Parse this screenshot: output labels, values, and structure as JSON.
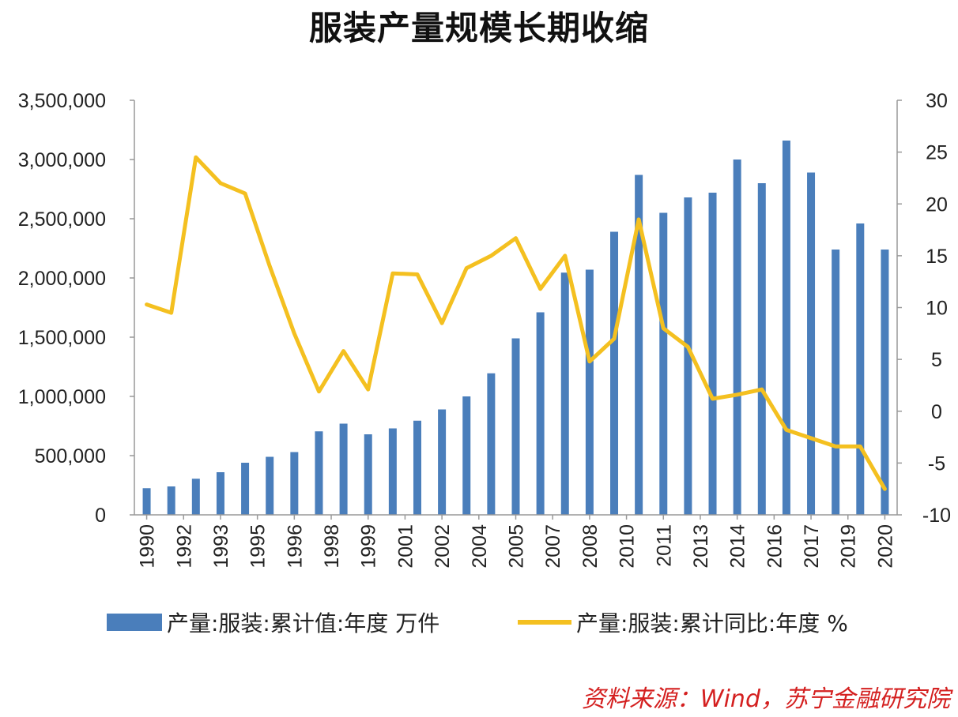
{
  "title": "服装产量规模长期收缩",
  "colors": {
    "bar": "#4a7ebb",
    "line": "#f4c020",
    "axis": "#999999",
    "source": "#d42020"
  },
  "chart_data": {
    "type": "bar+line",
    "title": "服装产量规模长期收缩",
    "x": [
      1990,
      1991,
      1992,
      1993,
      1994,
      1995,
      1996,
      1997,
      1998,
      1999,
      2000,
      2001,
      2002,
      2003,
      2004,
      2005,
      2006,
      2007,
      2008,
      2009,
      2010,
      2011,
      2012,
      2013,
      2014,
      2015,
      2016,
      2017,
      2018,
      2019,
      2020
    ],
    "x_tick_labels": [
      "1990",
      "1992",
      "1993",
      "1995",
      "1996",
      "1998",
      "1999",
      "2001",
      "2002",
      "2004",
      "2005",
      "2007",
      "2008",
      "2010",
      "2011",
      "2013",
      "2014",
      "2016",
      "2017",
      "2019",
      "2020"
    ],
    "y_left_ticks": [
      "3,500,000",
      "3,000,000",
      "2,500,000",
      "2,000,000",
      "1,500,000",
      "1,000,000",
      "500,000",
      "0"
    ],
    "y_right_ticks": [
      "30",
      "25",
      "20",
      "15",
      "10",
      "5",
      "0",
      "-5",
      "-10"
    ],
    "y_left_range": [
      0,
      3500000
    ],
    "y_right_range": [
      -10,
      30
    ],
    "series": [
      {
        "name": "产量:服装:累计值:年度 万件",
        "axis": "left",
        "kind": "bar",
        "values": [
          225000,
          240000,
          305000,
          360000,
          440000,
          490000,
          530000,
          705000,
          770000,
          680000,
          730000,
          795000,
          890000,
          1000000,
          1195000,
          1490000,
          1710000,
          2045000,
          2070000,
          2390000,
          2870000,
          2550000,
          2680000,
          2720000,
          3000000,
          2800000,
          3160000,
          2890000,
          2240000,
          2460000,
          2240000
        ]
      },
      {
        "name": "产量:服装:累计同比:年度 %",
        "axis": "right",
        "kind": "line",
        "values": [
          10.3,
          9.5,
          24.5,
          22.0,
          21.0,
          14.0,
          7.5,
          1.9,
          5.8,
          2.1,
          13.3,
          13.2,
          8.5,
          13.8,
          15.0,
          16.7,
          11.8,
          15.0,
          4.8,
          7.0,
          18.5,
          8.0,
          6.2,
          1.2,
          1.6,
          2.1,
          -1.8,
          -2.6,
          -3.4,
          -3.4,
          -7.5
        ]
      }
    ]
  },
  "legend": {
    "bar_label": "产量:服装:累计值:年度 万件",
    "line_label": "产量:服装:累计同比:年度 %"
  },
  "source": "资料来源：Wind，苏宁金融研究院"
}
